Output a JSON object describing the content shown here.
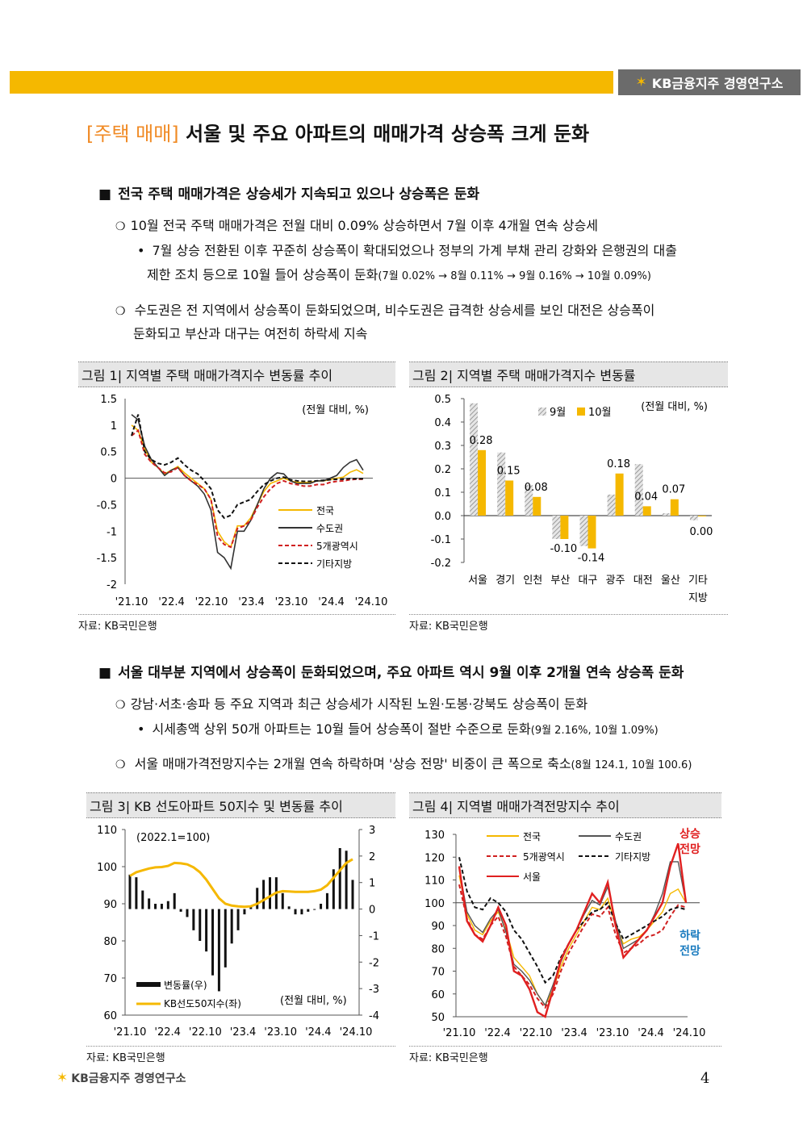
{
  "header": {
    "brand": "KB금융지주 경영연구소",
    "brand_mark": "KB"
  },
  "title": {
    "tag": "[주택 매매]",
    "text": "서울 및 주요 아파트의 매매가격 상승폭 크게 둔화"
  },
  "section1": {
    "heading": "전국 주택 매매가격은 상승세가 지속되고 있으나 상승폭은 둔화",
    "bullet1": "10월 전국 주택 매매가격은 전월 대비 0.09% 상승하면서 7월 이후 4개월 연속 상승세",
    "sub1_line1": "7월 상승 전환된 이후 꾸준히 상승폭이 확대되었으나 정부의 가계 부채 관리 강화와 은행권의 대출",
    "sub1_line2": "제한 조치 등으로 10월 들어 상승폭이 둔화",
    "sub1_note": "(7월 0.02% → 8월 0.11% → 9월 0.16% → 10월 0.09%)",
    "bullet2_line1": "수도권은 전 지역에서 상승폭이 둔화되었으며, 비수도권은 급격한 상승세를 보인 대전은 상승폭이",
    "bullet2_line2": "둔화되고 부산과 대구는 여전히 하락세 지속"
  },
  "section2": {
    "heading": "서울 대부분 지역에서 상승폭이 둔화되었으며, 주요 아파트 역시 9월 이후 2개월 연속 상승폭 둔화",
    "bullet1": "강남·서초·송파 등 주요 지역과 최근 상승세가 시작된 노원·도봉·강북도 상승폭이 둔화",
    "sub1": "시세총액 상위 50개 아파트는 10월 들어 상승폭이 절반 수준으로 둔화",
    "sub1_note": "(9월 2.16%, 10월 1.09%)",
    "bullet2": "서울 매매가격전망지수는 2개월 연속 하락하며 '상승 전망' 비중이 큰 폭으로 축소",
    "bullet2_note": "(8월 124.1, 10월 100.6)"
  },
  "colors": {
    "accent": "#f5b800",
    "orange": "#f08a24",
    "red": "#e02020",
    "blue": "#1a7bbf"
  },
  "figures": {
    "fig1": {
      "title": "그림 1| 지역별 주택 매매가격지수 변동률 추이",
      "source": "자료: KB국민은행",
      "unit": "(전월 대비, %)"
    },
    "fig2": {
      "title": "그림 2| 지역별 주택 매매가격지수 변동률",
      "source": "자료: KB국민은행",
      "unit": "(전월 대비, %)"
    },
    "fig3": {
      "title": "그림 3| KB 선도아파트 50지수 및 변동률 추이",
      "source": "자료: KB국민은행",
      "unit": "(전월 대비, %)",
      "base": "(2022.1=100)"
    },
    "fig4": {
      "title": "그림 4| 지역별 매매가격전망지수 추이",
      "source": "자료: KB국민은행",
      "up_label": "상승 전망",
      "down_label": "하락 전망"
    }
  },
  "chart_data": [
    {
      "id": "fig1",
      "type": "line",
      "x_ticks": [
        "'21.10",
        "'22.4",
        "'22.10",
        "'23.4",
        "'23.10",
        "'24.4",
        "'24.10"
      ],
      "ylim": [
        -2,
        1.5
      ],
      "y_ticks": [
        "1.5",
        "1",
        "0.5",
        "0",
        "-0.5",
        "-1",
        "-1.5",
        "-2"
      ],
      "series": [
        {
          "name": "전국",
          "color": "#f5b800",
          "style": "solid",
          "values": [
            1.0,
            0.9,
            0.55,
            0.3,
            0.2,
            0.08,
            0.15,
            0.22,
            0.1,
            0.0,
            -0.1,
            -0.2,
            -0.4,
            -1.0,
            -1.2,
            -1.3,
            -0.9,
            -0.9,
            -0.75,
            -0.5,
            -0.25,
            -0.1,
            -0.05,
            0.0,
            -0.05,
            -0.08,
            -0.08,
            -0.08,
            -0.05,
            -0.05,
            -0.03,
            0.0,
            0.02,
            0.11,
            0.16,
            0.09
          ]
        },
        {
          "name": "수도권",
          "color": "#333333",
          "style": "solid",
          "values": [
            1.2,
            1.1,
            0.6,
            0.35,
            0.2,
            0.05,
            0.15,
            0.2,
            0.05,
            -0.05,
            -0.15,
            -0.3,
            -0.6,
            -1.4,
            -1.5,
            -1.7,
            -1.0,
            -1.0,
            -0.8,
            -0.5,
            -0.2,
            0.0,
            0.1,
            0.08,
            -0.05,
            -0.1,
            -0.1,
            -0.1,
            -0.05,
            -0.05,
            0.0,
            0.05,
            0.2,
            0.3,
            0.35,
            0.15
          ]
        },
        {
          "name": "5개광역시",
          "color": "#d02020",
          "style": "dashed",
          "values": [
            0.8,
            0.9,
            0.45,
            0.3,
            0.2,
            0.1,
            0.12,
            0.2,
            0.05,
            -0.05,
            -0.12,
            -0.2,
            -0.4,
            -1.1,
            -1.25,
            -1.3,
            -0.95,
            -0.9,
            -0.8,
            -0.55,
            -0.35,
            -0.2,
            -0.1,
            -0.05,
            -0.1,
            -0.12,
            -0.15,
            -0.15,
            -0.12,
            -0.12,
            -0.08,
            -0.06,
            -0.05,
            -0.03,
            -0.02,
            -0.02
          ]
        },
        {
          "name": "기타지방",
          "color": "#111111",
          "style": "dashed",
          "values": [
            0.8,
            1.2,
            0.5,
            0.35,
            0.28,
            0.25,
            0.3,
            0.38,
            0.25,
            0.15,
            0.08,
            -0.05,
            -0.2,
            -0.6,
            -0.75,
            -0.7,
            -0.5,
            -0.45,
            -0.4,
            -0.25,
            -0.12,
            -0.05,
            0.0,
            0.02,
            -0.03,
            -0.05,
            -0.06,
            -0.06,
            -0.05,
            -0.04,
            -0.03,
            -0.02,
            -0.02,
            -0.01,
            -0.01,
            -0.01
          ]
        }
      ]
    },
    {
      "id": "fig2",
      "type": "bar",
      "categories": [
        "서울",
        "경기",
        "인천",
        "부산",
        "대구",
        "광주",
        "대전",
        "울산",
        "기타\n지방"
      ],
      "ylim": [
        -0.2,
        0.5
      ],
      "y_ticks": [
        "0.5",
        "0.4",
        "0.3",
        "0.2",
        "0.1",
        "0.0",
        "-0.1",
        "-0.2"
      ],
      "series": [
        {
          "name": "9월",
          "color": "#bbbbbb",
          "values": [
            0.48,
            0.27,
            0.13,
            -0.1,
            -0.13,
            0.09,
            0.22,
            0.01,
            -0.02
          ]
        },
        {
          "name": "10월",
          "color": "#f5b800",
          "values": [
            0.28,
            0.15,
            0.08,
            -0.1,
            -0.14,
            0.18,
            0.04,
            0.07,
            0.0
          ]
        }
      ],
      "data_labels": [
        "0.28",
        "0.15",
        "0.08",
        "-0.10",
        "-0.14",
        "0.18",
        "0.04",
        "0.07",
        "0.00"
      ]
    },
    {
      "id": "fig3",
      "type": "bar",
      "x_ticks": [
        "'21.10",
        "'22.4",
        "'22.10",
        "'23.4",
        "'23.10",
        "'24.4",
        "'24.10"
      ],
      "ylim_left": [
        60,
        110
      ],
      "ylim_right": [
        -4,
        3
      ],
      "y_ticks_left": [
        "110",
        "100",
        "90",
        "80",
        "70",
        "60"
      ],
      "y_ticks_right": [
        "3",
        "2",
        "1",
        "0",
        "-1",
        "-2",
        "-3",
        "-4"
      ],
      "series": [
        {
          "name": "변동률(우)",
          "color": "#111111",
          "axis": "right",
          "values": [
            1.3,
            1.2,
            0.7,
            0.4,
            0.2,
            0.2,
            0.3,
            0.6,
            -0.1,
            -0.3,
            -0.8,
            -1.2,
            -1.6,
            -2.5,
            -3.1,
            -2.2,
            -1.3,
            -0.8,
            -0.2,
            0.1,
            0.8,
            1.1,
            1.2,
            1.2,
            0.6,
            0.1,
            -0.2,
            -0.2,
            -0.1,
            0.0,
            0.2,
            0.6,
            1.5,
            2.3,
            2.2,
            1.1
          ]
        },
        {
          "name": "KB선도50지수(좌)",
          "color": "#f5b800",
          "axis": "left",
          "values": [
            97.5,
            98.5,
            99,
            99.5,
            99.8,
            99.9,
            100.2,
            101,
            100.9,
            100.6,
            99.8,
            98.5,
            96.5,
            94,
            91.5,
            90,
            89.5,
            89.3,
            89.2,
            89.3,
            90,
            91,
            92,
            93,
            93.4,
            93.3,
            93.2,
            93.2,
            93.2,
            93.4,
            93.8,
            95,
            97,
            99,
            101,
            102
          ]
        }
      ]
    },
    {
      "id": "fig4",
      "type": "line",
      "x_ticks": [
        "'21.10",
        "'22.4",
        "'22.10",
        "'23.4",
        "'23.10",
        "'24.4",
        "'24.10"
      ],
      "ylim": [
        50,
        130
      ],
      "y_ticks": [
        "130",
        "120",
        "110",
        "100",
        "90",
        "80",
        "70",
        "60",
        "50"
      ],
      "reference_line": 100,
      "series": [
        {
          "name": "전국",
          "color": "#f5b800",
          "style": "solid",
          "values": [
            112,
            95,
            88,
            86,
            92,
            96,
            88,
            76,
            72,
            68,
            60,
            55,
            62,
            72,
            80,
            86,
            92,
            98,
            97,
            102,
            90,
            82,
            84,
            85,
            88,
            92,
            96,
            104,
            106,
            100
          ]
        },
        {
          "name": "수도권",
          "color": "#555555",
          "style": "solid",
          "values": [
            115,
            96,
            90,
            87,
            93,
            97,
            87,
            73,
            70,
            66,
            60,
            55,
            64,
            74,
            82,
            88,
            95,
            101,
            99,
            107,
            92,
            80,
            82,
            84,
            88,
            95,
            104,
            118,
            118,
            100
          ]
        },
        {
          "name": "5개광역시",
          "color": "#d02020",
          "style": "dashed",
          "values": [
            108,
            93,
            86,
            84,
            90,
            94,
            85,
            72,
            68,
            64,
            58,
            54,
            60,
            70,
            78,
            84,
            90,
            95,
            94,
            98,
            86,
            78,
            80,
            82,
            85,
            86,
            88,
            94,
            99,
            98
          ]
        },
        {
          "name": "기타지방",
          "color": "#111111",
          "style": "dashed",
          "values": [
            120,
            105,
            98,
            97,
            102,
            100,
            96,
            88,
            84,
            78,
            72,
            65,
            68,
            76,
            82,
            88,
            92,
            96,
            97,
            100,
            91,
            84,
            86,
            88,
            90,
            92,
            94,
            97,
            98,
            97
          ]
        },
        {
          "name": "서울",
          "color": "#e02020",
          "style": "solid",
          "values": [
            116,
            92,
            86,
            83,
            90,
            98,
            90,
            70,
            68,
            62,
            52,
            50,
            62,
            75,
            82,
            88,
            96,
            104,
            100,
            109,
            90,
            76,
            80,
            84,
            88,
            94,
            100,
            116,
            126,
            100
          ]
        }
      ]
    }
  ],
  "footer": {
    "brand": "KB금융지주 경영연구소",
    "brand_mark": "KB",
    "page": "4"
  }
}
